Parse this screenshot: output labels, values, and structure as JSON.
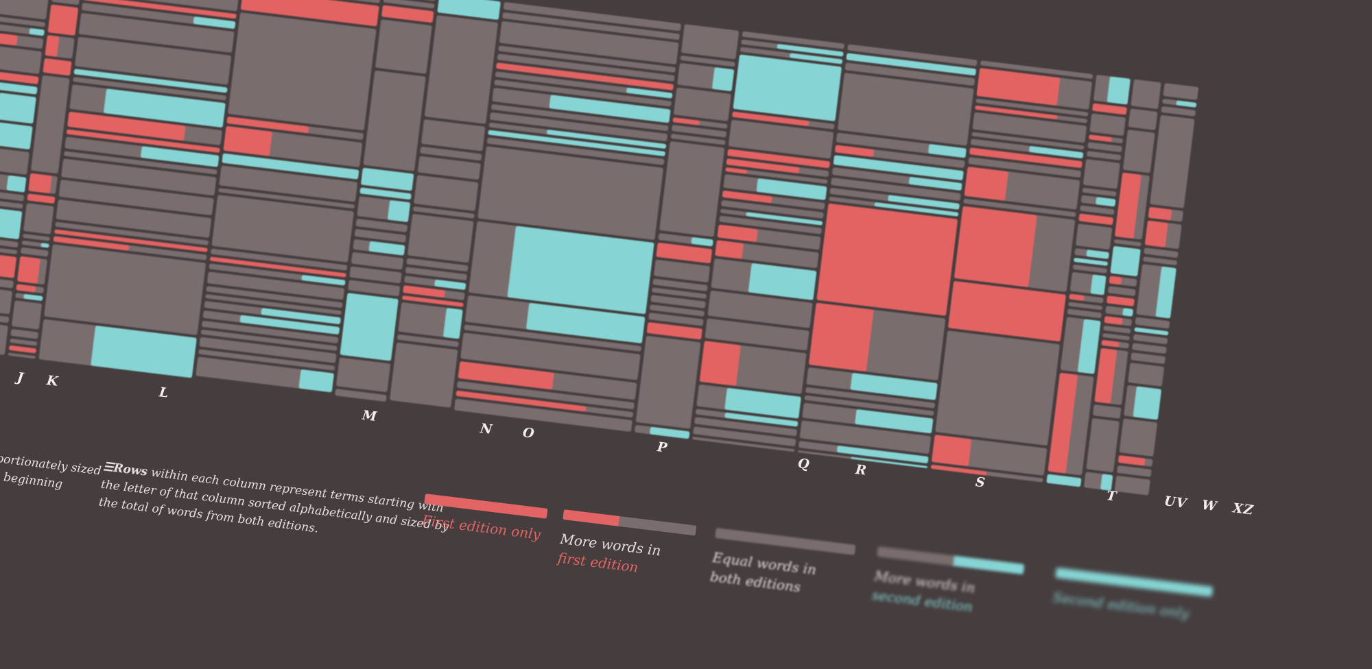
{
  "colors": {
    "background": "#453d3e",
    "cell": "#796d6e",
    "first_edition": "#e36464",
    "second_edition": "#86d4d4",
    "text": "#e7dfdf"
  },
  "column_labels": [
    "J",
    "K",
    "L",
    "M",
    "N",
    "O",
    "P",
    "Q",
    "R",
    "S",
    "T",
    "UV",
    "W",
    "XZ"
  ],
  "notes": {
    "left_fragment_line1": "portionately sized",
    "left_fragment_line2": "s beginning",
    "rows_icon": "☰",
    "rows_title": "Rows",
    "rows_text_line1": " within each column represent terms starting with",
    "rows_text_line2": "the letter of that column sorted alphabetically and sized by",
    "rows_text_line3": "the total of words from both editions."
  },
  "legend": [
    {
      "line1": "First edition only",
      "line2": ""
    },
    {
      "line1": "More words in",
      "line2": "first edition"
    },
    {
      "line1": "Equal words in",
      "line2": "both editions"
    },
    {
      "line1": "More words in",
      "line2": "second edition"
    },
    {
      "line1": "Second edition only",
      "line2": ""
    }
  ]
}
